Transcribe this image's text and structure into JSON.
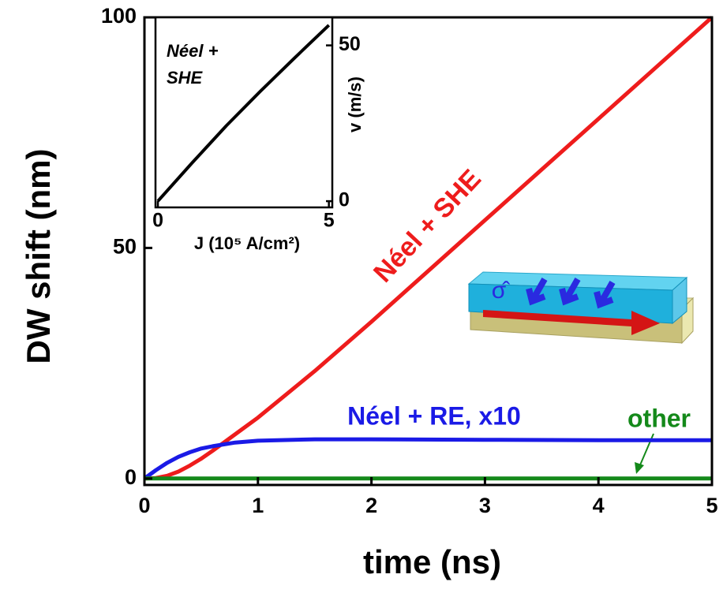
{
  "chart_data": [
    {
      "type": "line",
      "x_label": "time (ns)",
      "y_label": "DW shift (nm)",
      "xlim": [
        0,
        5
      ],
      "ylim": [
        -1.4,
        100
      ],
      "xticks": [
        0,
        1,
        2,
        3,
        4,
        5
      ],
      "yticks": [
        0,
        50,
        100
      ],
      "series": [
        {
          "name": "Néel + SHE",
          "color": "#ee1c1c",
          "x": [
            0,
            0.1,
            0.2,
            0.3,
            0.4,
            0.5,
            0.6,
            0.7,
            0.8,
            1,
            1.5,
            2,
            2.5,
            3,
            3.5,
            4,
            4.5,
            5
          ],
          "values": [
            0,
            0.1,
            0.6,
            1.5,
            2.8,
            4.3,
            6.0,
            7.8,
            9.6,
            13.2,
            23.3,
            34,
            45,
            56,
            67,
            78,
            89,
            100
          ]
        },
        {
          "name": "Néel + RE, x10",
          "color": "#1a1ae6",
          "x": [
            0,
            0.1,
            0.2,
            0.3,
            0.4,
            0.5,
            0.6,
            0.8,
            1,
            1.5,
            2,
            3,
            4,
            5
          ],
          "values": [
            0,
            1.8,
            3.4,
            4.7,
            5.7,
            6.5,
            7.0,
            7.8,
            8.2,
            8.5,
            8.5,
            8.4,
            8.3,
            8.3
          ]
        },
        {
          "name": "other",
          "color": "#14891a",
          "x": [
            0,
            5
          ],
          "values": [
            0,
            0
          ]
        }
      ],
      "schematic_label": "σ̂"
    },
    {
      "type": "line",
      "title_lines": [
        "Néel +",
        "SHE"
      ],
      "x_label": "J (10⁵ A/cm²)",
      "y_label": "v (m/s)",
      "xlim": [
        -0.07,
        5.1
      ],
      "ylim": [
        -2,
        59
      ],
      "xticks": [
        0,
        5
      ],
      "yticks": [
        0,
        50
      ],
      "series": [
        {
          "name": "Néel + SHE",
          "color": "#000000",
          "x": [
            0,
            1,
            2,
            3,
            4,
            5
          ],
          "values": [
            0,
            12.3,
            24.2,
            35.3,
            46,
            56.5
          ]
        }
      ]
    }
  ]
}
